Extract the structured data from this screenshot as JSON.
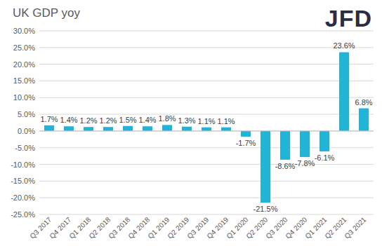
{
  "logo": "JFD",
  "chart_data": {
    "type": "bar",
    "title": "UK GDP yoy",
    "categories": [
      "Q3 2017",
      "Q4 2017",
      "Q1 2018",
      "Q2 2018",
      "Q3 2018",
      "Q4 2018",
      "Q1 2019",
      "Q2 2019",
      "Q3 2019",
      "Q4 2019",
      "Q1 2020",
      "Q2 2020",
      "Q3 2020",
      "Q4 2020",
      "Q1 2021",
      "Q2 2021",
      "Q3 2021"
    ],
    "values": [
      1.7,
      1.4,
      1.2,
      1.2,
      1.5,
      1.4,
      1.8,
      1.3,
      1.1,
      1.1,
      -1.7,
      -21.5,
      -8.6,
      -7.8,
      -6.1,
      23.6,
      6.8
    ],
    "value_labels": [
      "1.7%",
      "1.4%",
      "1.2%",
      "1.2%",
      "1.5%",
      "1.4%",
      "1.8%",
      "1.3%",
      "1.1%",
      "1.1%",
      "-1.7%",
      "-21.5%",
      "-8.6%",
      "-7.8%",
      "-6.1%",
      "23.6%",
      "6.8%"
    ],
    "color": "#22b4d6",
    "ylim": [
      -25,
      30
    ],
    "yticks": [
      {
        "value": -25,
        "label": "-25.0%"
      },
      {
        "value": -20,
        "label": "-20.0%"
      },
      {
        "value": -15,
        "label": "-15.0%"
      },
      {
        "value": -10,
        "label": "-10.0%"
      },
      {
        "value": -5,
        "label": "-5.0%"
      },
      {
        "value": 0,
        "label": "0.0%"
      },
      {
        "value": 5,
        "label": "5.0%"
      },
      {
        "value": 10,
        "label": "10.0%"
      },
      {
        "value": 15,
        "label": "15.0%"
      },
      {
        "value": 20,
        "label": "20.0%"
      },
      {
        "value": 25,
        "label": "25.0%"
      },
      {
        "value": 30,
        "label": "30.0%"
      }
    ],
    "grid": true,
    "data_labels": true
  }
}
